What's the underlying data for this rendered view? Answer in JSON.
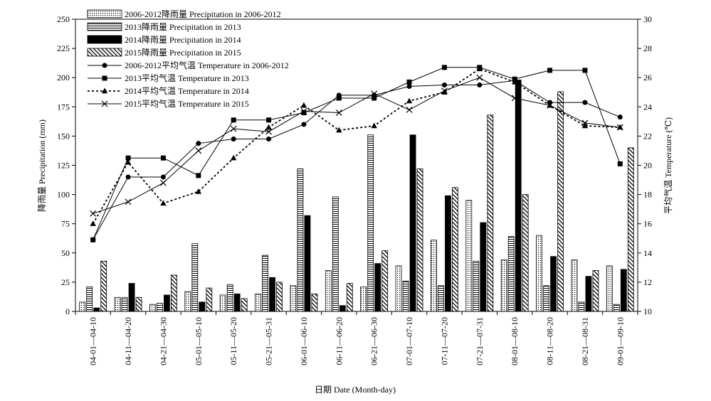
{
  "chart_data": {
    "type": "bar+line",
    "categories": [
      "04-01—04-10",
      "04-11—04-20",
      "04-21—04-30",
      "05-01—05-10",
      "05-11—05-20",
      "05-21—05-31",
      "06-01—06-10",
      "06-11—06-20",
      "06-21—06-30",
      "07-01—07-10",
      "07-11—07-20",
      "07-21—07-31",
      "08-01—08-10",
      "08-11—08-20",
      "08-21—08-31",
      "09-01—09-10"
    ],
    "xlabel": "日期 Date (Month-day)",
    "ylabel_left": "降雨量 Precipitation (mm)",
    "ylabel_right": "平均气温 Temperature (℃)",
    "ylim_left": [
      0,
      250
    ],
    "yticks_left": [
      0,
      25,
      50,
      75,
      100,
      125,
      150,
      175,
      200,
      225,
      250
    ],
    "ylim_right": [
      10,
      30
    ],
    "yticks_right": [
      10,
      12,
      14,
      16,
      18,
      20,
      22,
      24,
      26,
      28,
      30
    ],
    "bar_series": [
      {
        "name": "2006-2012降雨量 Precipitation in 2006-2012",
        "pattern": "dots",
        "values": [
          8,
          12,
          6,
          17,
          14,
          15,
          22,
          35,
          21,
          39,
          61,
          95,
          44,
          65,
          44,
          39
        ]
      },
      {
        "name": "2013降雨量 Precipitation in 2013",
        "pattern": "hlines",
        "values": [
          21,
          12,
          7,
          58,
          23,
          48,
          122,
          98,
          151,
          26,
          22,
          43,
          64,
          22,
          8,
          6
        ]
      },
      {
        "name": "2014降雨量 Precipitation in 2014",
        "pattern": "solid",
        "values": [
          3,
          24,
          14,
          8,
          15,
          29,
          82,
          5,
          41,
          151,
          99,
          76,
          198,
          47,
          30,
          36
        ]
      },
      {
        "name": "2015降雨量 Precipitation in 2015",
        "pattern": "diag",
        "values": [
          43,
          12,
          31,
          20,
          11,
          25,
          15,
          24,
          52,
          122,
          106,
          168,
          100,
          188,
          35,
          140
        ]
      }
    ],
    "line_series": [
      {
        "name": "2006-2012平均气温 Temperature in 2006-2012",
        "marker": "circle",
        "dash": "solid",
        "values": [
          14.9,
          19.2,
          19.2,
          21.5,
          21.8,
          21.8,
          22.8,
          24.8,
          24.8,
          25.4,
          25.5,
          25.5,
          25.8,
          24.3,
          24.3,
          23.3
        ]
      },
      {
        "name": "2013平均气温 Temperature in 2013",
        "marker": "square",
        "dash": "solid",
        "values": [
          14.9,
          20.5,
          20.5,
          19.3,
          23.1,
          23.1,
          23.6,
          24.6,
          24.6,
          25.7,
          26.7,
          26.7,
          25.9,
          26.5,
          26.5,
          20.1
        ]
      },
      {
        "name": "2014平均气温 Temperature in 2014",
        "marker": "triangle",
        "dash": "dotted",
        "values": [
          16.0,
          20.2,
          17.4,
          18.2,
          20.5,
          22.6,
          24.1,
          22.4,
          22.7,
          24.4,
          25.0,
          26.6,
          25.7,
          24.1,
          22.7,
          22.6
        ]
      },
      {
        "name": "2015平均气温 Temperature in 2015",
        "marker": "x",
        "dash": "solid",
        "values": [
          16.7,
          17.5,
          18.8,
          21.0,
          22.5,
          22.3,
          23.7,
          23.6,
          24.9,
          23.8,
          25.1,
          26.0,
          24.6,
          24.1,
          22.9,
          22.6
        ]
      }
    ],
    "legend_position": "top-left",
    "grid": false
  }
}
